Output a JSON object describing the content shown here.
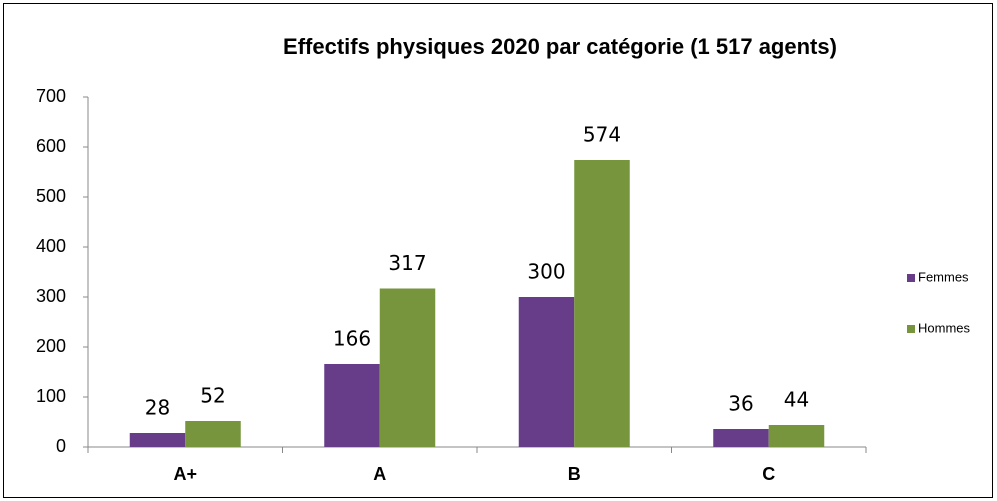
{
  "chart_data": {
    "type": "bar",
    "title": "Effectifs physiques 2020 par catégorie  (1 517 agents)",
    "categories": [
      "A+",
      "A",
      "B",
      "C"
    ],
    "series": [
      {
        "name": "Femmes",
        "color": "#673d8a",
        "values": [
          28,
          166,
          300,
          36
        ]
      },
      {
        "name": "Hommes",
        "color": "#77953d",
        "values": [
          52,
          317,
          574,
          44
        ]
      }
    ],
    "ylim": [
      0,
      700
    ],
    "yticks": [
      0,
      100,
      200,
      300,
      400,
      500,
      600,
      700
    ],
    "grid": false,
    "legend": "right"
  }
}
